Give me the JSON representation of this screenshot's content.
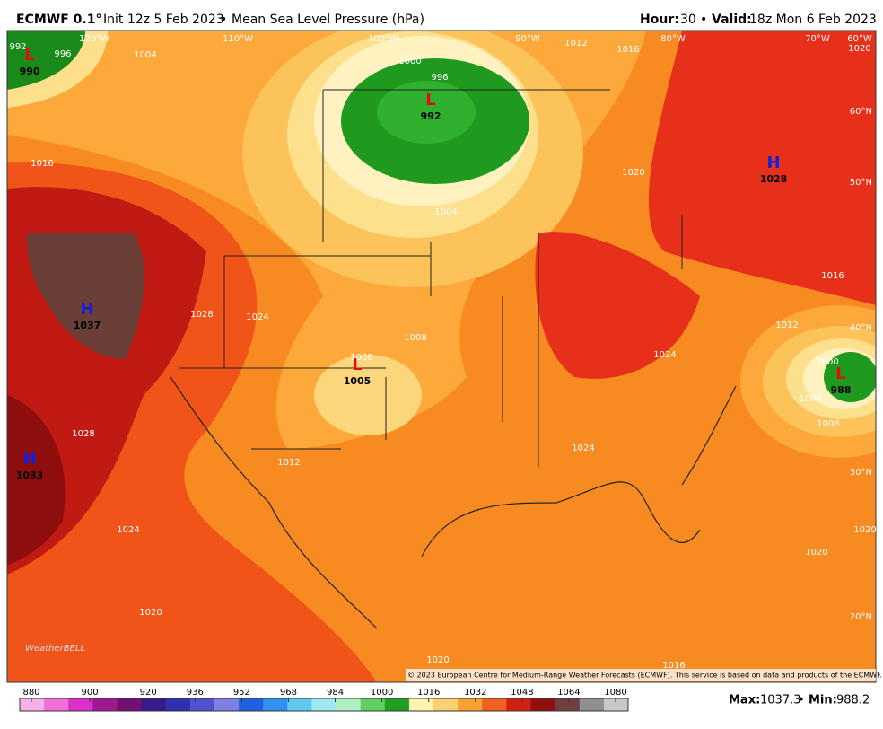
{
  "header": {
    "model": "ECMWF 0.1°",
    "run": "Init 12z 5 Feb 2023",
    "separator": "•",
    "field": "Mean Sea Level Pressure (hPa)",
    "hour_label": "Hour:",
    "hour": 30,
    "valid_label": "Valid:",
    "valid": "18z Mon 6 Feb 2023"
  },
  "longitude_labels": [
    "120°W",
    "110°W",
    "100°W",
    "90°W",
    "80°W",
    "70°W",
    "60°W"
  ],
  "latitude_labels": [
    "60°N",
    "50°N",
    "40°N",
    "30°N",
    "20°N"
  ],
  "pressure_centers": [
    {
      "symbol": "L",
      "value": 990
    },
    {
      "symbol": "L",
      "value": 992
    },
    {
      "symbol": "H",
      "value": 1028
    },
    {
      "symbol": "H",
      "value": 1037
    },
    {
      "symbol": "H",
      "value": 1033
    },
    {
      "symbol": "L",
      "value": 1005
    },
    {
      "symbol": "L",
      "value": 988
    }
  ],
  "isobar_labels": [
    1004,
    1000,
    996,
    1012,
    1016,
    1020,
    1016,
    1020,
    1004,
    1028,
    1024,
    1008,
    1008,
    1016,
    1012,
    1024,
    1000,
    1004,
    1008,
    1024,
    1012,
    1028,
    1024,
    1020,
    1020,
    1020,
    1020,
    1016,
    996,
    992
  ],
  "logo": "WeatherBELL",
  "copyright": "© 2023 European Centre for Medium-Range Weather Forecasts (ECMWF). This service is based on data and products of the ECMWF.",
  "colorbar": {
    "ticks": [
      880,
      900,
      920,
      936,
      952,
      968,
      984,
      1000,
      1016,
      1032,
      1048,
      1064,
      1080
    ],
    "colors": [
      "#f7b0e8",
      "#f070d8",
      "#d830c8",
      "#a01890",
      "#701070",
      "#3a1a8a",
      "#3030b0",
      "#5050d0",
      "#8080e0",
      "#2060e0",
      "#3090f0",
      "#60c8f0",
      "#a0e8f0",
      "#b0f0c0",
      "#60d060",
      "#20a020",
      "#fff4b0",
      "#fcd070",
      "#f8a030",
      "#f06020",
      "#d02010",
      "#901010",
      "#704040",
      "#909090",
      "#c8c8c8"
    ]
  },
  "stats": {
    "max_label": "Max:",
    "max": 1037.3,
    "separator": "•",
    "min_label": "Min:",
    "min": 988.2
  }
}
